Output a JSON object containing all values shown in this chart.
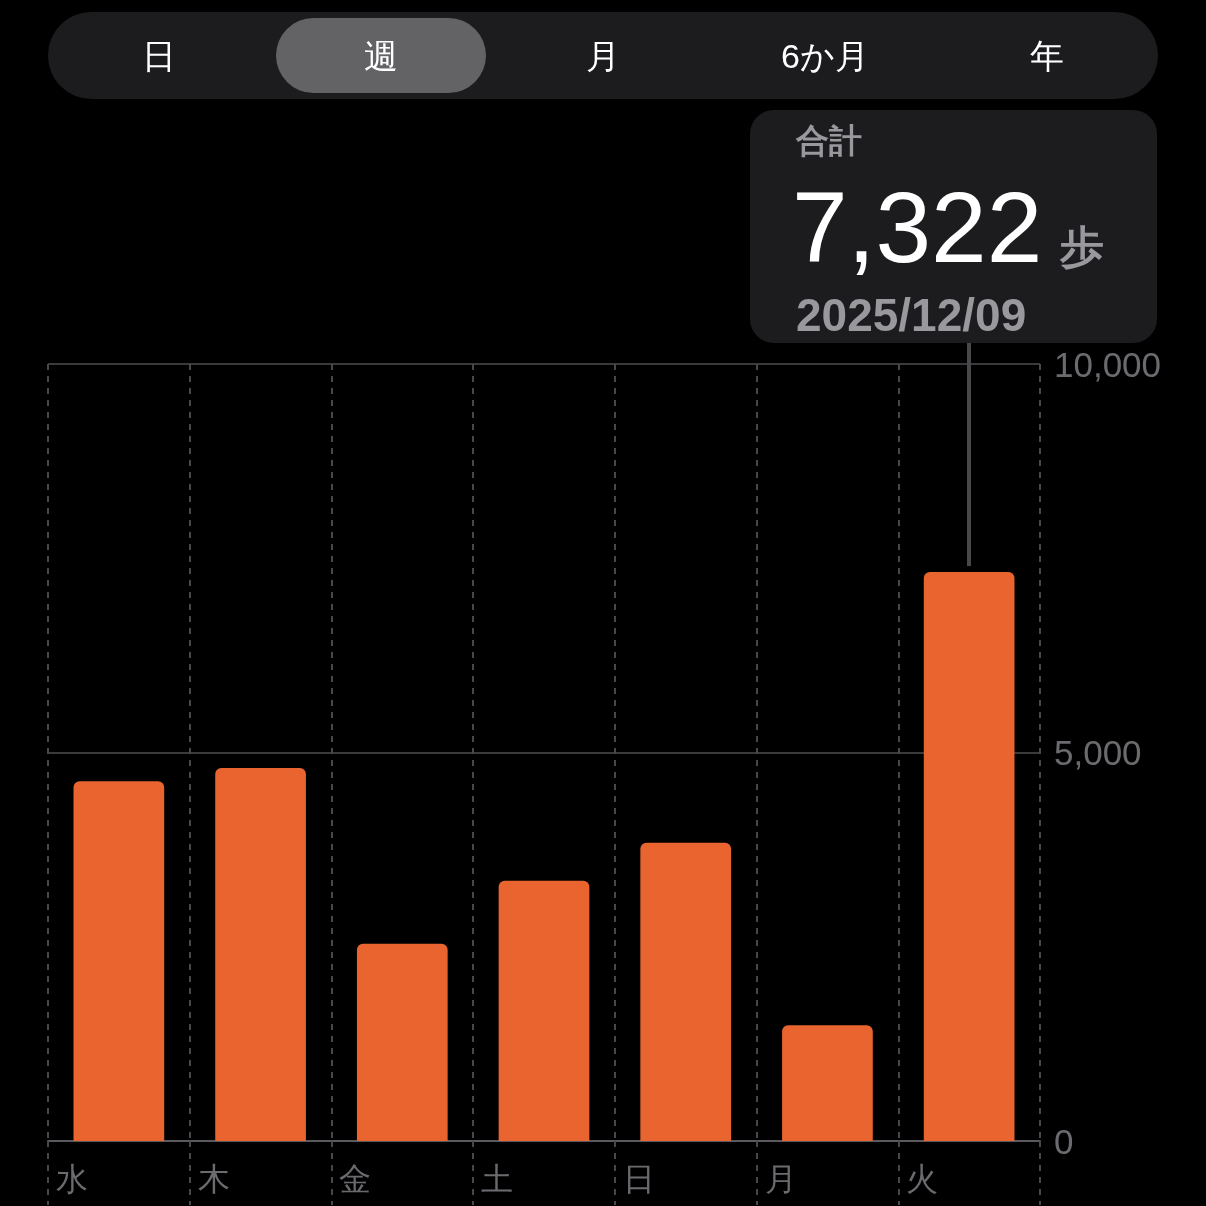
{
  "chart_data": {
    "type": "bar",
    "categories": [
      "水",
      "木",
      "金",
      "土",
      "日",
      "月",
      "火"
    ],
    "values": [
      4630,
      4800,
      2540,
      3350,
      3840,
      1490,
      7322
    ],
    "color": "#e9642f",
    "ylim": [
      0,
      10000
    ],
    "yticks": [
      0,
      {
        "value": 5000,
        "label": "5,000"
      },
      {
        "value": 10000,
        "label": "10,000"
      }
    ],
    "grid": true,
    "annotations": [
      "日",
      "週",
      "月",
      "6か月",
      "年",
      "合計",
      "7,322",
      "歩",
      "2025/12/09"
    ]
  }
}
